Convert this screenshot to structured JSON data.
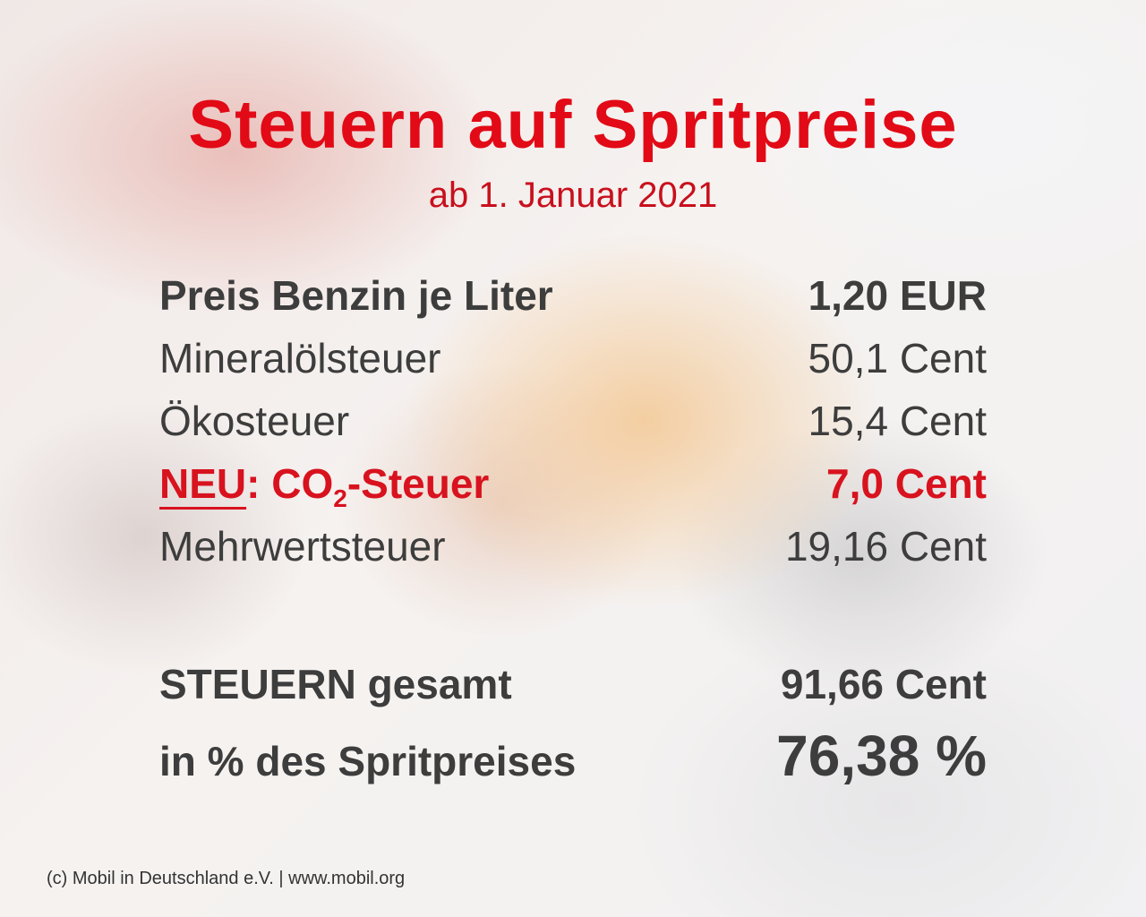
{
  "title": "Steuern auf Spritpreise",
  "subtitle": "ab 1. Januar 2021",
  "rows": [
    {
      "label": "Preis Benzin je Liter",
      "value": "1,20 EUR"
    },
    {
      "label": "Mineralölsteuer",
      "value": "50,1 Cent"
    },
    {
      "label": "Ökosteuer",
      "value": "15,4 Cent"
    },
    {
      "label_prefix": "NEU",
      "label_mid": ": CO",
      "label_sub": "2",
      "label_suffix": "-Steuer",
      "value": "7,0 Cent"
    },
    {
      "label": "Mehrwertsteuer",
      "value": "19,16 Cent"
    }
  ],
  "totals": [
    {
      "label": "STEUERN gesamt",
      "value": "91,66 Cent"
    },
    {
      "label": "in % des Spritpreises",
      "value": "76,38 %"
    }
  ],
  "footer": "(c) Mobil in Deutschland e.V. | www.mobil.org",
  "colors": {
    "accent_red": "#e20a16",
    "text_dark": "#3d3d3d"
  }
}
